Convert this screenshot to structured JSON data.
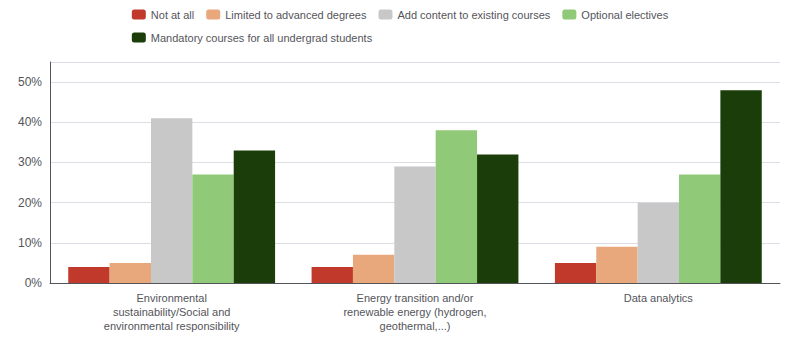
{
  "chart_data": {
    "type": "bar",
    "categories": [
      "Environmental\nsustainability/Social and\nenvironmental responsibility",
      "Energy transition and/or\nrenewable energy (hydrogen,\ngeothermal,...)",
      "Data analytics"
    ],
    "series": [
      {
        "name": "Not at all",
        "color": "#c0392b",
        "values": [
          4,
          4,
          5
        ]
      },
      {
        "name": "Limited to advanced degrees",
        "color": "#e8a87c",
        "values": [
          5,
          7,
          9
        ]
      },
      {
        "name": "Add content to existing courses",
        "color": "#c8c8c8",
        "values": [
          41,
          29,
          20
        ]
      },
      {
        "name": "Optional electives",
        "color": "#90c978",
        "values": [
          27,
          38,
          27
        ]
      },
      {
        "name": "Mandatory courses for all undergrad students",
        "color": "#1a3d0a",
        "values": [
          33,
          32,
          48
        ]
      }
    ],
    "ylim": [
      0,
      55
    ],
    "yticks": [
      {
        "value": 0,
        "label": "0%"
      },
      {
        "value": 10,
        "label": "10%"
      },
      {
        "value": 20,
        "label": "20%"
      },
      {
        "value": 30,
        "label": "30%"
      },
      {
        "value": 40,
        "label": "40%"
      },
      {
        "value": 50,
        "label": "50%"
      }
    ],
    "grid": true,
    "legend": "top"
  }
}
